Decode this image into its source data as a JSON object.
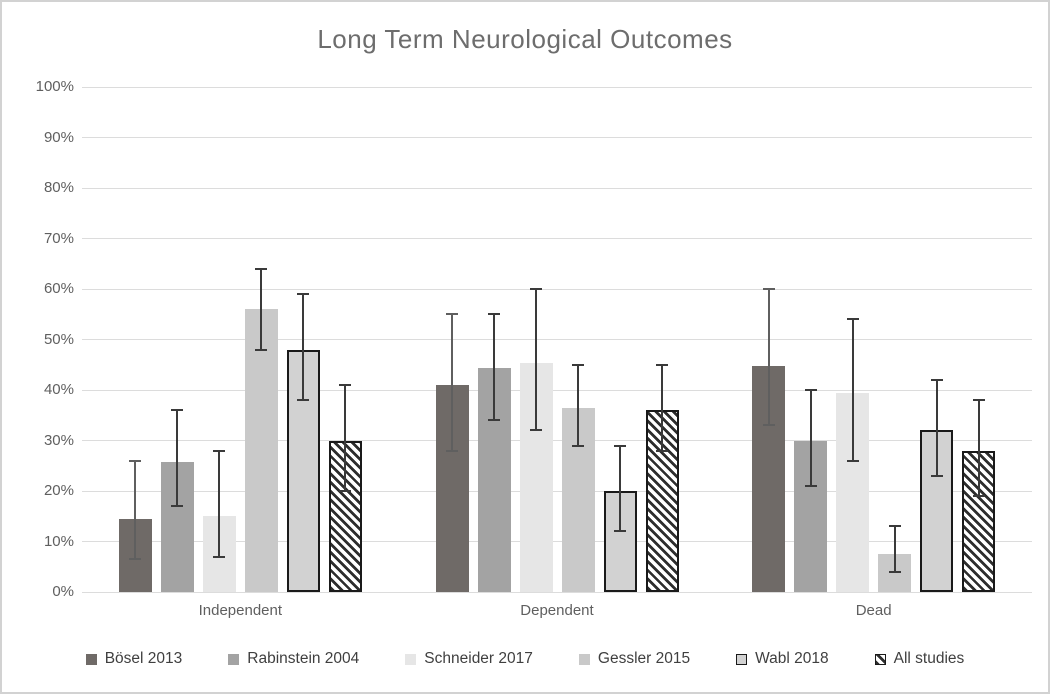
{
  "chart_data": {
    "type": "bar",
    "title": "Long Term Neurological Outcomes",
    "categories": [
      "Independent",
      "Dependent",
      "Dead"
    ],
    "series": [
      {
        "name": "Bösel 2013",
        "color": "#6f6a67",
        "error_color": "#5f5f5f",
        "values": [
          14.5,
          41,
          44.7
        ],
        "error_low": [
          6.5,
          28,
          33
        ],
        "error_high": [
          26,
          55,
          60
        ]
      },
      {
        "name": "Rabinstein 2004",
        "color": "#a3a3a3",
        "error_color": "#3a3a3a",
        "values": [
          25.7,
          44.3,
          30
        ],
        "error_low": [
          17,
          34,
          21
        ],
        "error_high": [
          36,
          55,
          40
        ]
      },
      {
        "name": "Schneider 2017",
        "color": "#e6e6e6",
        "error_color": "#3a3a3a",
        "values": [
          15,
          45.3,
          39.5
        ],
        "error_low": [
          7,
          32,
          26
        ],
        "error_high": [
          28,
          60,
          54
        ]
      },
      {
        "name": "Gessler 2015",
        "color": "#c9c9c9",
        "error_color": "#3a3a3a",
        "values": [
          56,
          36.5,
          7.5
        ],
        "error_low": [
          48,
          29,
          4
        ],
        "error_high": [
          64,
          45,
          13
        ]
      },
      {
        "name": "Wabl 2018",
        "color": "#d2d2d2",
        "border": "#1a1a1a",
        "error_color": "#3a3a3a",
        "values": [
          48,
          20,
          32
        ],
        "error_low": [
          38,
          12,
          23
        ],
        "error_high": [
          59,
          29,
          42
        ]
      },
      {
        "name": "All studies",
        "hatch": true,
        "hatch_color": "#2e2e2e",
        "border": "#1a1a1a",
        "error_color": "#3a3a3a",
        "values": [
          30,
          36,
          28
        ],
        "error_low": [
          20,
          28,
          19
        ],
        "error_high": [
          41,
          45,
          38
        ]
      }
    ],
    "ylim": [
      0,
      100
    ],
    "ytick_step": 10,
    "yticks": [
      "0%",
      "10%",
      "20%",
      "30%",
      "40%",
      "50%",
      "60%",
      "70%",
      "80%",
      "90%",
      "100%"
    ],
    "xlabel": "",
    "ylabel": "",
    "grid": "horizontal",
    "legend_position": "bottom"
  },
  "colors": {
    "background": "#ffffff",
    "figure_border": "#d2d2d2",
    "gridline": "#dcdcdc",
    "title_text": "#6d6d6d",
    "axis_text": "#5f5f5f",
    "legend_text": "#3f3f3f"
  }
}
